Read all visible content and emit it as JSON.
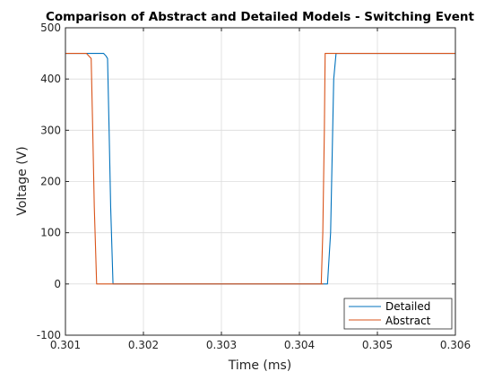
{
  "chart_data": {
    "type": "line",
    "title": "Comparison of Abstract and Detailed Models - Switching Event",
    "xlabel": "Time (ms)",
    "ylabel": "Voltage (V)",
    "xlim": [
      0.301,
      0.306
    ],
    "ylim": [
      -100,
      500
    ],
    "x_ticks": [
      0.301,
      0.302,
      0.303,
      0.304,
      0.305,
      0.306
    ],
    "x_tick_labels": [
      "0.301",
      "0.302",
      "0.303",
      "0.304",
      "0.305",
      "0.306"
    ],
    "y_ticks": [
      -100,
      0,
      100,
      200,
      300,
      400,
      500
    ],
    "y_tick_labels": [
      "-100",
      "0",
      "100",
      "200",
      "300",
      "400",
      "500"
    ],
    "grid": true,
    "legend_position": "bottom-right",
    "series": [
      {
        "name": "Detailed",
        "color": "#0072BD",
        "x": [
          0.301,
          0.30149,
          0.30152,
          0.30154,
          0.30156,
          0.30158,
          0.30161,
          0.3017,
          0.3043,
          0.30436,
          0.30438,
          0.3044,
          0.30442,
          0.30444,
          0.30447,
          0.306
        ],
        "y": [
          450,
          450,
          445,
          440,
          300,
          150,
          0,
          0,
          0,
          0,
          50,
          100,
          250,
          400,
          450,
          450
        ]
      },
      {
        "name": "Abstract",
        "color": "#D95319",
        "x": [
          0.301,
          0.30127,
          0.30133,
          0.30135,
          0.30137,
          0.30139,
          0.3014,
          0.3043,
          0.30428,
          0.30425,
          0.30428,
          0.3043,
          0.30432,
          0.30433,
          0.306
        ],
        "y": [
          450,
          450,
          440,
          300,
          150,
          50,
          0,
          0,
          0,
          0,
          0,
          100,
          300,
          450,
          450
        ]
      }
    ]
  }
}
